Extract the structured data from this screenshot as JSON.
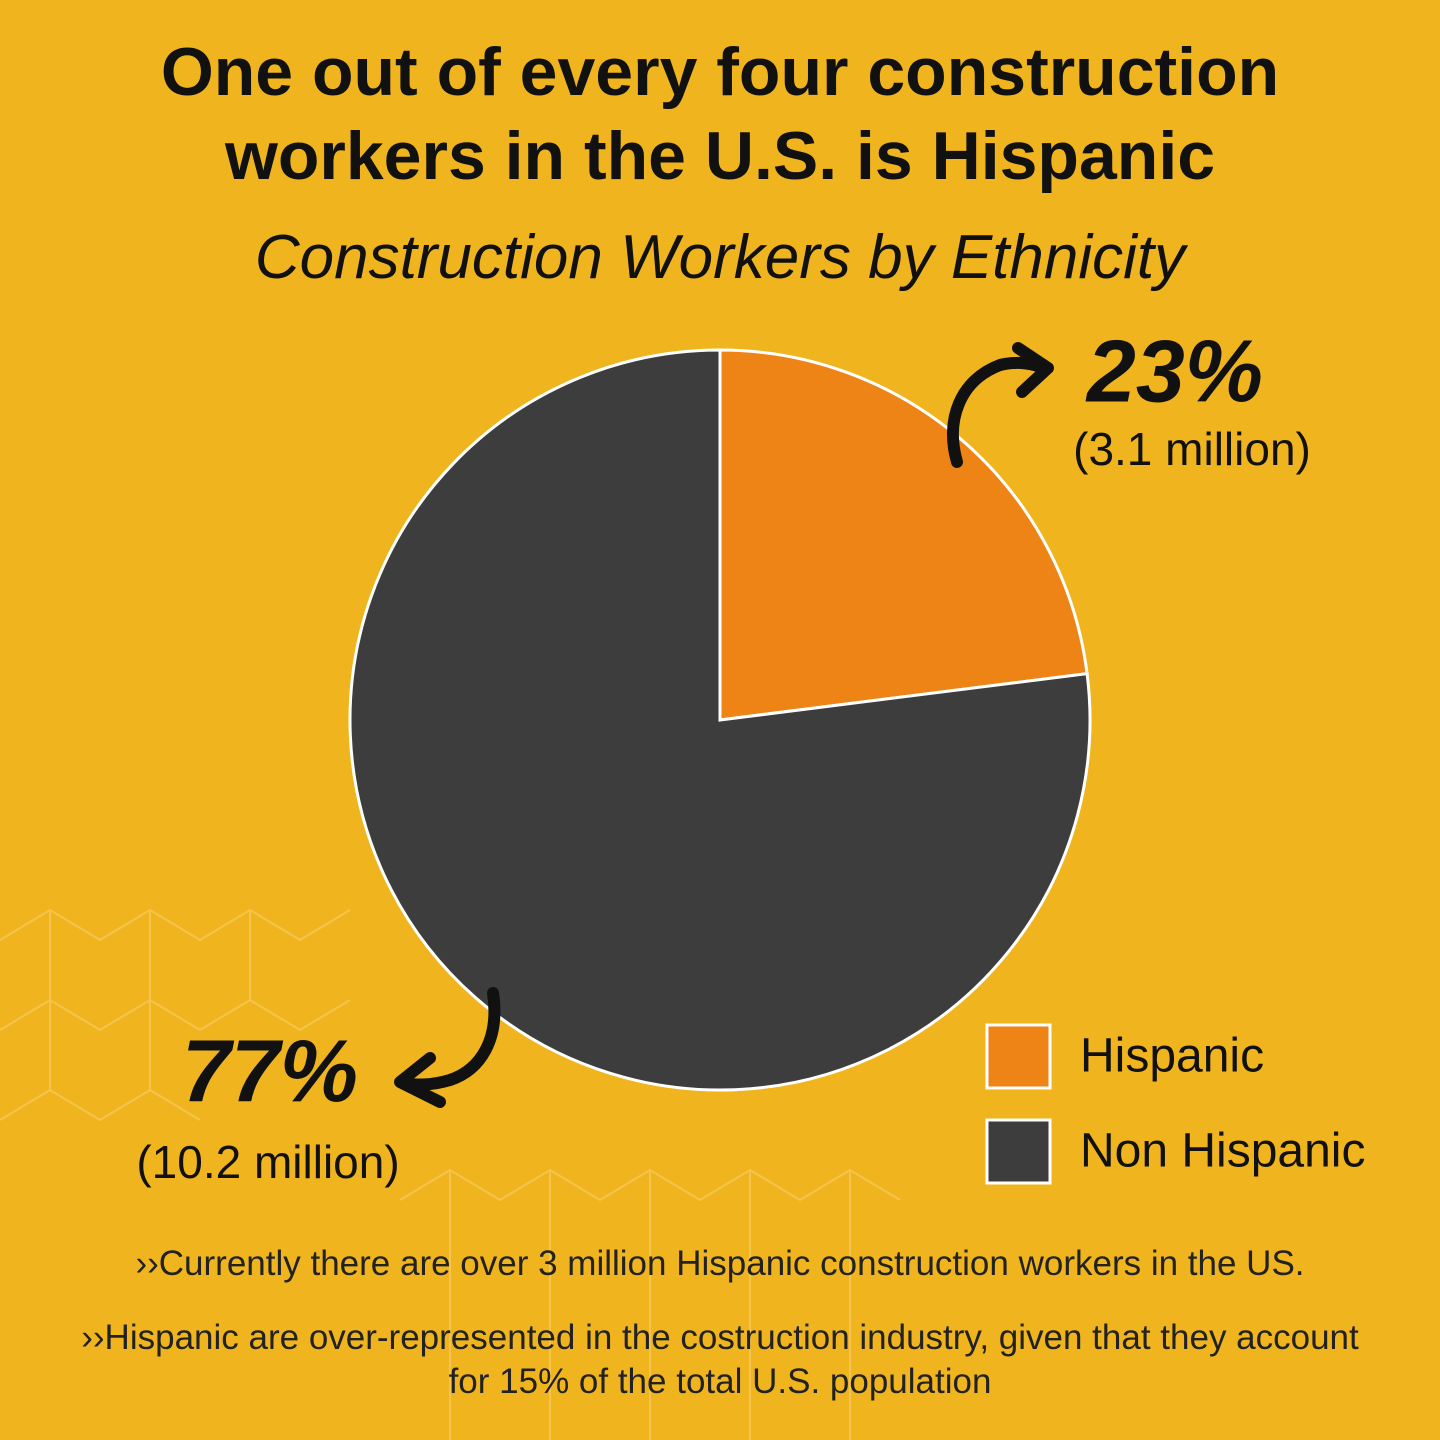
{
  "chart_data": {
    "type": "pie",
    "title": "One out of every four construction workers in the U.S. is Hispanic",
    "subtitle": "Construction Workers by Ethnicity",
    "categories": [
      "Hispanic",
      "Non Hispanic"
    ],
    "values": [
      23,
      77
    ],
    "value_labels": [
      "23%",
      "77%"
    ],
    "sub_labels": [
      "(3.1 million)",
      "(10.2 million)"
    ],
    "colors": [
      "#EE8416",
      "#3D3D3D"
    ]
  },
  "notes": [
    "››Currently there are over 3 million Hispanic construction workers in the US.",
    "››Hispanic are over-represented in the costruction industry, given that they account for 15% of the total U.S. population"
  ]
}
